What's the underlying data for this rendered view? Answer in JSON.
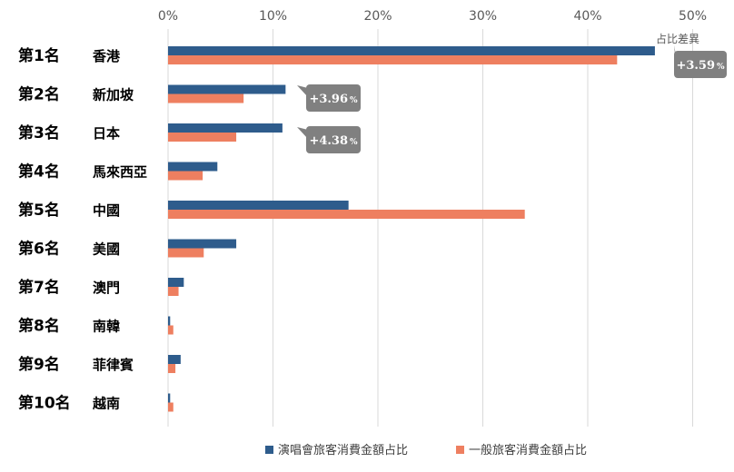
{
  "chart_data": {
    "type": "bar",
    "orientation": "horizontal",
    "x_ticks": [
      "0%",
      "10%",
      "20%",
      "30%",
      "40%",
      "50%"
    ],
    "xlim": [
      0,
      50
    ],
    "grid": true,
    "legend_position": "bottom",
    "rows": [
      {
        "rank": "第1名",
        "country": "香港"
      },
      {
        "rank": "第2名",
        "country": "新加坡"
      },
      {
        "rank": "第3名",
        "country": "日本"
      },
      {
        "rank": "第4名",
        "country": "馬來西亞"
      },
      {
        "rank": "第5名",
        "country": "中國"
      },
      {
        "rank": "第6名",
        "country": "美國"
      },
      {
        "rank": "第7名",
        "country": "澳門"
      },
      {
        "rank": "第8名",
        "country": "南韓"
      },
      {
        "rank": "第9名",
        "country": "菲律賓"
      },
      {
        "rank": "第10名",
        "country": "越南"
      }
    ],
    "series": [
      {
        "name": "演唱會旅客消費金額占比",
        "color": "#2E5C8C",
        "values": [
          46.4,
          11.2,
          10.9,
          4.7,
          17.2,
          6.5,
          1.5,
          0.2,
          1.2,
          0.2
        ]
      },
      {
        "name": "一般旅客消費金額占比",
        "color": "#EE7F60",
        "values": [
          42.8,
          7.2,
          6.5,
          3.3,
          34.0,
          3.4,
          1.0,
          0.5,
          0.7,
          0.5
        ]
      }
    ],
    "diff_title": "占比差異",
    "callouts": [
      {
        "row": 0,
        "value": "+3.59",
        "unit": "%"
      },
      {
        "row": 1,
        "value": "+3.96",
        "unit": "%"
      },
      {
        "row": 2,
        "value": "+4.38",
        "unit": "%"
      }
    ]
  }
}
